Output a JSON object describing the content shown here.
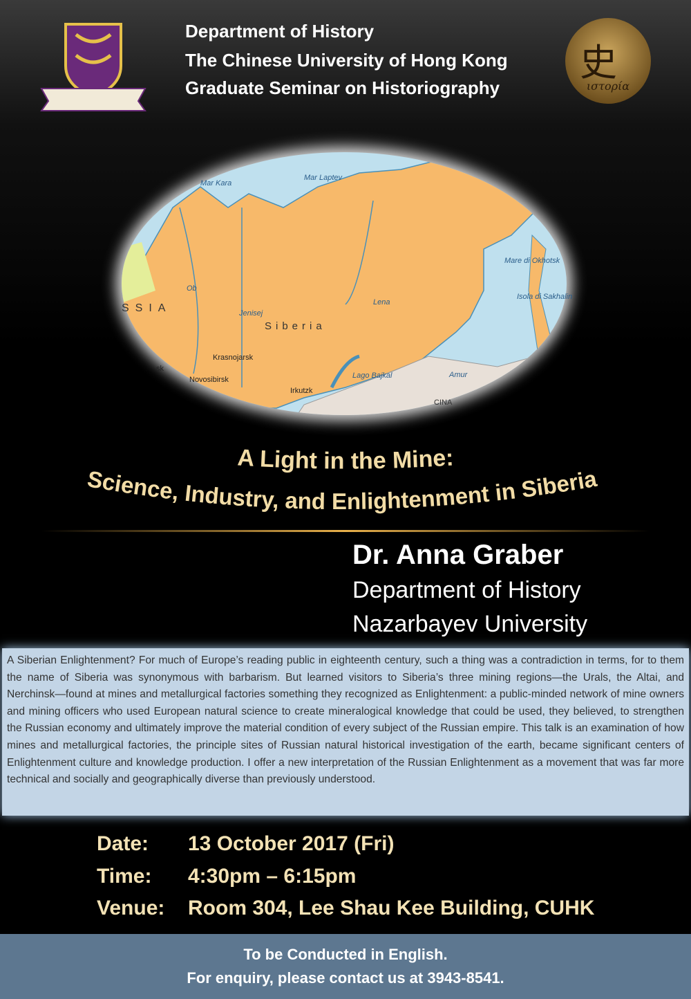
{
  "header": {
    "lines": [
      "Department of History",
      "The Chinese University of Hong Kong",
      "Graduate Seminar on Historiography"
    ]
  },
  "logo_right": {
    "char": "史",
    "caption": "ιστορία"
  },
  "map": {
    "labels": [
      "Mar Kara",
      "Mar Laptev",
      "SSIA",
      "Siberia",
      "Krasnojarsk",
      "Novosibirsk",
      "Irkutzk",
      "Lago Bajkal",
      "Mare di Okhotsk",
      "Isola di Sakhalin",
      "CINA",
      "Ob",
      "Jenisej",
      "Lena",
      "Amur",
      "sk"
    ]
  },
  "title": {
    "line1": "A Light in the Mine:",
    "line2": "Science, Industry, and Enlightenment in Siberia"
  },
  "speaker": {
    "name": "Dr. Anna Graber",
    "department": "Department of History",
    "university": "Nazarbayev University"
  },
  "abstract": "A Siberian Enlightenment? For much of Europe’s reading public in eighteenth century, such a thing was a contradiction in terms, for to them the name of Siberia was synonymous with barbarism. But learned visitors to Siberia’s three mining regions—the Urals, the Altai, and Nerchinsk—found at mines and metallurgical factories something they recognized as Enlightenment: a public-minded network of mine owners and mining officers who used European natural science to create mineralogical knowledge that could be used, they believed, to strengthen the Russian economy and ultimately improve the material condition of every subject of the Russian empire. This talk is an examination of how mines and metallurgical factories, the principle sites of Russian natural historical investigation of the earth, became significant centers of Enlightenment culture and knowledge production. I offer a new interpretation of the Russian Enlightenment as a movement that was far more technical and socially and geographically diverse than previously understood.",
  "details": [
    [
      "Date:",
      "13 October 2017 (Fri)"
    ],
    [
      "Time:",
      "4:30pm – 6:15pm"
    ],
    [
      "Venue:",
      "Room 304, Lee Shau Kee Building, CUHK"
    ]
  ],
  "footer": {
    "lines": [
      "To be Conducted in English.",
      "For enquiry, please contact us at 3943-8541."
    ]
  }
}
